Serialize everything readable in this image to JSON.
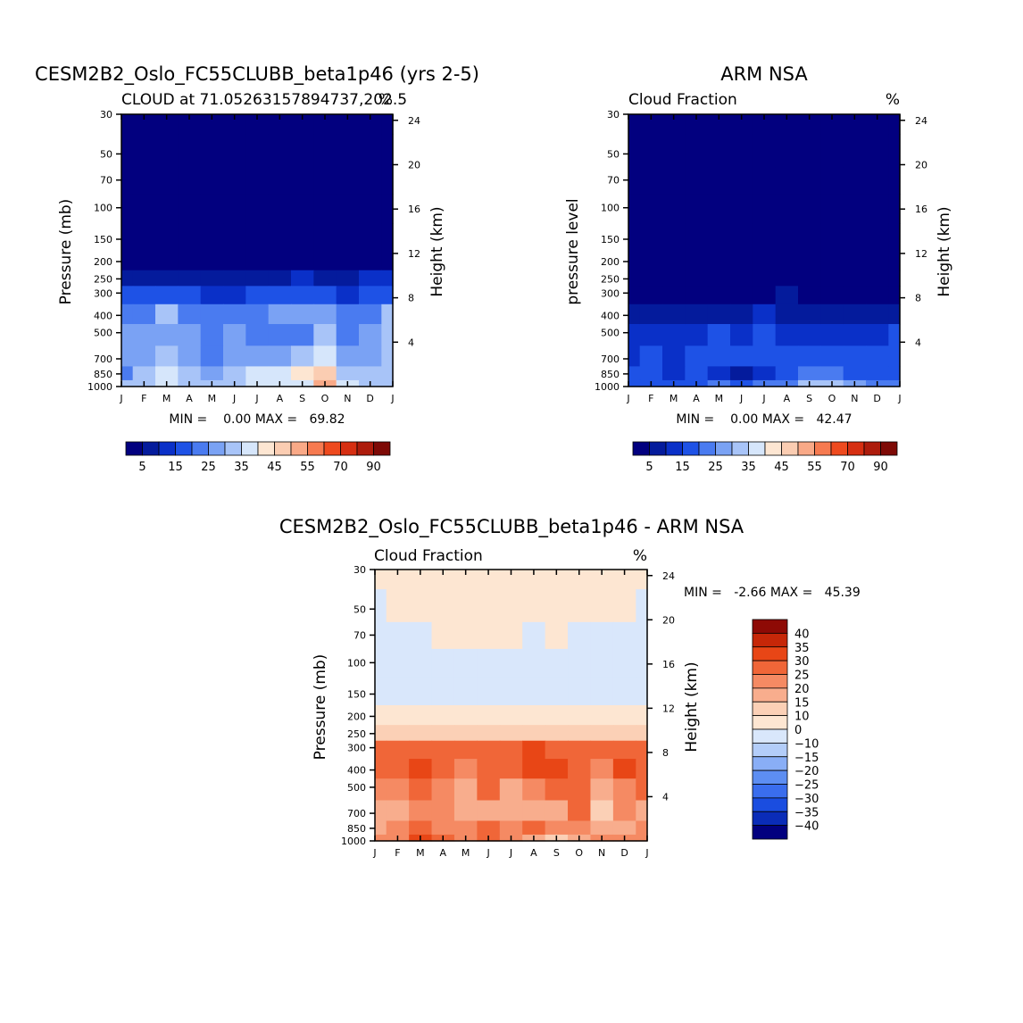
{
  "colors": {
    "model_ramp": [
      "#02007f",
      "#041b9c",
      "#0a30c8",
      "#1e52e6",
      "#4a7bf0",
      "#7aa2f4",
      "#a8c4f8",
      "#d6e6fb",
      "#fde6d2",
      "#fbcdb2",
      "#f9a987",
      "#f67a50",
      "#ee4a1e",
      "#d62f12",
      "#ad1c0c",
      "#7e0a06"
    ],
    "diff_ramp": [
      "#02007f",
      "#0a2cb8",
      "#1a4de0",
      "#3a6ded",
      "#5d8ef2",
      "#89aef6",
      "#b3cdf9",
      "#d9e7fb",
      "#fde6d2",
      "#fbd0b6",
      "#f8ad8d",
      "#f58a63",
      "#f06638",
      "#e84616",
      "#c62708",
      "#8e0a05"
    ]
  },
  "chart_data": [
    {
      "type": "heatmap",
      "title_main": "CESM2B2_Oslo_FC55CLUBB_beta1p46 (yrs 2-5)",
      "title_left": "CLOUD at 71.05263157894737,202.5",
      "title_right": "%",
      "ylabel": "Pressure (mb)",
      "ylabel_right": "Height (km)",
      "x_ticks": [
        "J",
        "F",
        "M",
        "A",
        "M",
        "J",
        "J",
        "A",
        "S",
        "O",
        "N",
        "D",
        "J"
      ],
      "y_ticks": [
        "30",
        "50",
        "70",
        "100",
        "150",
        "200",
        "250",
        "300",
        "400",
        "500",
        "700",
        "850",
        "1000"
      ],
      "y_ticks_right": [
        "24",
        "20",
        "16",
        "12",
        "8",
        "4"
      ],
      "y_tick_values_right": [
        24,
        20,
        16,
        12,
        8,
        4
      ],
      "stats": "MIN =    0.00 MAX =   69.82",
      "legend_labels": [
        "5",
        "15",
        "25",
        "35",
        "45",
        "55",
        "70",
        "90"
      ],
      "value_range": [
        0,
        100
      ],
      "grid": [
        [
          1,
          1,
          1,
          1,
          1,
          1,
          1,
          1,
          1,
          1,
          1,
          1,
          1
        ],
        [
          1,
          1,
          1,
          1,
          1,
          1,
          1,
          1,
          1,
          1,
          1,
          1,
          1
        ],
        [
          1,
          1,
          1,
          1,
          1,
          1,
          1,
          1,
          1,
          1,
          1,
          1,
          1
        ],
        [
          1,
          1,
          1,
          1,
          1,
          1,
          1,
          1,
          1,
          1,
          1,
          1,
          1
        ],
        [
          2,
          2,
          2,
          2,
          2,
          2,
          2,
          2,
          2,
          2,
          2,
          2,
          2
        ],
        [
          4,
          4,
          3,
          3,
          2,
          2,
          3,
          4,
          4,
          3,
          2,
          3,
          4
        ],
        [
          12,
          12,
          12,
          10,
          10,
          10,
          10,
          12,
          14,
          12,
          10,
          14,
          14
        ],
        [
          20,
          24,
          24,
          20,
          18,
          18,
          20,
          20,
          22,
          20,
          16,
          20,
          24
        ],
        [
          28,
          30,
          38,
          30,
          28,
          30,
          30,
          32,
          32,
          36,
          26,
          30,
          42
        ],
        [
          32,
          34,
          34,
          32,
          26,
          33,
          28,
          30,
          30,
          40,
          29,
          33,
          40
        ],
        [
          34,
          33,
          38,
          34,
          26,
          33,
          34,
          36,
          38,
          44,
          33,
          35,
          40
        ],
        [
          30,
          38,
          44,
          40,
          34,
          38,
          44,
          48,
          50,
          58,
          42,
          38,
          38
        ],
        [
          38,
          42,
          44,
          40,
          38,
          40,
          44,
          44,
          48,
          64,
          44,
          40,
          40
        ]
      ]
    },
    {
      "type": "heatmap",
      "title_main": "ARM NSA",
      "title_left": "Cloud Fraction",
      "title_right": "%",
      "ylabel": "pressure level",
      "ylabel_right": "Height (km)",
      "x_ticks": [
        "J",
        "F",
        "M",
        "A",
        "M",
        "J",
        "J",
        "A",
        "S",
        "O",
        "N",
        "D",
        "J"
      ],
      "y_ticks": [
        "30",
        "50",
        "70",
        "100",
        "150",
        "200",
        "250",
        "300",
        "400",
        "500",
        "700",
        "850",
        "1000"
      ],
      "y_ticks_right": [
        "24",
        "20",
        "16",
        "12",
        "8",
        "4"
      ],
      "y_tick_values_right": [
        24,
        20,
        16,
        12,
        8,
        4
      ],
      "stats": "MIN =    0.00 MAX =   42.47",
      "legend_labels": [
        "5",
        "15",
        "25",
        "35",
        "45",
        "55",
        "70",
        "90"
      ],
      "value_range": [
        0,
        100
      ],
      "grid": [
        [
          1,
          1,
          1,
          1,
          1,
          1,
          1,
          1,
          1,
          1,
          1,
          1,
          1
        ],
        [
          1,
          1,
          1,
          1,
          1,
          1,
          1,
          1,
          1,
          1,
          1,
          1,
          1
        ],
        [
          1,
          1,
          1,
          1,
          1,
          1,
          1,
          1,
          1,
          1,
          1,
          1,
          1
        ],
        [
          1,
          1,
          1,
          1,
          1,
          1,
          1,
          1,
          1,
          1,
          1,
          1,
          1
        ],
        [
          1,
          1,
          1,
          1,
          1,
          1,
          1,
          1,
          1,
          1,
          1,
          1,
          1
        ],
        [
          1,
          1,
          1,
          1,
          1,
          1,
          1,
          1,
          1,
          1,
          1,
          1,
          1
        ],
        [
          2,
          2,
          2,
          2,
          2,
          2,
          2,
          2,
          2,
          2,
          2,
          2,
          2
        ],
        [
          4,
          4,
          4,
          4,
          4,
          5,
          6,
          7,
          5,
          4,
          4,
          4,
          4
        ],
        [
          10,
          10,
          8,
          9,
          12,
          12,
          14,
          12,
          12,
          12,
          12,
          12,
          12
        ],
        [
          16,
          18,
          14,
          16,
          20,
          18,
          20,
          18,
          18,
          18,
          18,
          18,
          20
        ],
        [
          18,
          20,
          18,
          20,
          22,
          20,
          22,
          22,
          22,
          22,
          22,
          20,
          20
        ],
        [
          20,
          22,
          18,
          22,
          18,
          12,
          16,
          22,
          28,
          30,
          24,
          22,
          22
        ],
        [
          22,
          24,
          22,
          24,
          28,
          22,
          26,
          30,
          38,
          42,
          32,
          26,
          26
        ]
      ]
    },
    {
      "type": "heatmap",
      "title_main": "CESM2B2_Oslo_FC55CLUBB_beta1p46 - ARM NSA",
      "title_left": "Cloud Fraction",
      "title_right": "%",
      "ylabel": "Pressure (mb)",
      "ylabel_right": "Height (km)",
      "x_ticks": [
        "J",
        "F",
        "M",
        "A",
        "M",
        "J",
        "J",
        "A",
        "S",
        "O",
        "N",
        "D",
        "J"
      ],
      "y_ticks": [
        "30",
        "50",
        "70",
        "100",
        "150",
        "200",
        "250",
        "300",
        "400",
        "500",
        "700",
        "850",
        "1000"
      ],
      "y_ticks_right": [
        "24",
        "20",
        "16",
        "12",
        "8",
        "4"
      ],
      "y_tick_values_right": [
        24,
        20,
        16,
        12,
        8,
        4
      ],
      "stats": "MIN =   -2.66 MAX =   45.39",
      "legend_labels": [
        "40",
        "35",
        "30",
        "25",
        "20",
        "15",
        "10",
        "0",
        "-10",
        "-15",
        "-20",
        "-25",
        "-30",
        "-35",
        "-40"
      ],
      "value_range": [
        -45,
        45
      ],
      "grid": [
        [
          1,
          1,
          1,
          1,
          1,
          1,
          1,
          1,
          1,
          1,
          1,
          1,
          1
        ],
        [
          -1,
          1,
          1,
          1,
          1,
          1,
          1,
          1,
          1,
          1,
          1,
          1,
          -1
        ],
        [
          -1,
          -1,
          -1,
          1,
          1,
          1,
          1,
          -1,
          1,
          -1,
          -1,
          -1,
          -1
        ],
        [
          -1,
          -1,
          -1,
          -1,
          -1,
          -1,
          -1,
          -1,
          -1,
          -1,
          -1,
          -1,
          -1
        ],
        [
          -1,
          -1,
          -1,
          -1,
          -1,
          -1,
          -1,
          -1,
          -1,
          -1,
          -1,
          -1,
          -1
        ],
        [
          2,
          2,
          2,
          2,
          2,
          2,
          2,
          2,
          2,
          2,
          2,
          2,
          2
        ],
        [
          8,
          9,
          8,
          10,
          9,
          8,
          9,
          10,
          9,
          8,
          8,
          8,
          8
        ],
        [
          24,
          25,
          26,
          24,
          24,
          24,
          26,
          30,
          28,
          24,
          24,
          25,
          26
        ],
        [
          24,
          26,
          32,
          24,
          22,
          26,
          24,
          30,
          30,
          24,
          20,
          30,
          28
        ],
        [
          20,
          18,
          28,
          18,
          16,
          24,
          16,
          22,
          24,
          26,
          12,
          22,
          24
        ],
        [
          12,
          16,
          22,
          18,
          12,
          16,
          14,
          16,
          12,
          24,
          10,
          18,
          16
        ],
        [
          16,
          18,
          24,
          20,
          18,
          26,
          22,
          24,
          20,
          22,
          16,
          16,
          20
        ],
        [
          20,
          22,
          30,
          24,
          22,
          26,
          22,
          16,
          10,
          12,
          20,
          20,
          22
        ]
      ]
    }
  ]
}
